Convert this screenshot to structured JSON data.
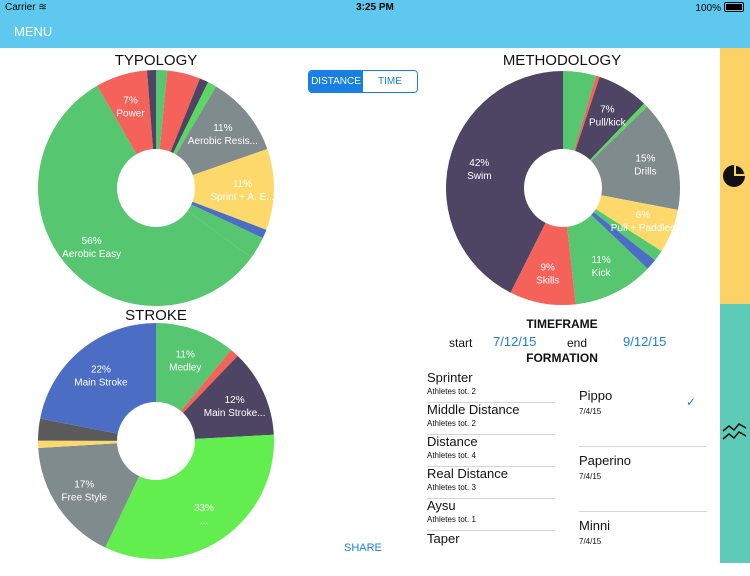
{
  "status": {
    "carrier": "Carrier",
    "time": "3:25 PM",
    "battery": "100%"
  },
  "nav": {
    "menu_label": "MENU"
  },
  "toggle": {
    "distance_label": "DISTANCE",
    "time_label": "TIME"
  },
  "charts": {
    "typology": {
      "title": "TYPOLOGY"
    },
    "methodology": {
      "title": "METHODOLOGY"
    },
    "stroke": {
      "title": "STROKE"
    }
  },
  "chart_data": [
    {
      "type": "pie",
      "title": "TYPOLOGY",
      "slices": [
        {
          "value": 1.5,
          "color": "#56c770",
          "pct": "",
          "label": ""
        },
        {
          "value": 4.5,
          "color": "#f4625a",
          "pct": "",
          "label": ""
        },
        {
          "value": 1.2,
          "color": "#4e4565",
          "pct": "",
          "label": ""
        },
        {
          "value": 1.2,
          "color": "#5ad960",
          "pct": "",
          "label": ""
        },
        {
          "value": 11,
          "color": "#7f8b8c",
          "pct": "11%",
          "label": "Aerobic Resis..."
        },
        {
          "value": 11,
          "color": "#fcd96a",
          "pct": "11%",
          "label": "Sprint + A. E..."
        },
        {
          "value": 1.2,
          "color": "#4b6dc4",
          "pct": "",
          "label": ""
        },
        {
          "value": 3,
          "color": "#56c770",
          "pct": "",
          "label": ""
        },
        {
          "value": 56,
          "color": "#56c770",
          "pct": "56%",
          "label": "Aerobic Easy"
        },
        {
          "value": 7,
          "color": "#f4625a",
          "pct": "7%",
          "label": "Power"
        },
        {
          "value": 1.2,
          "color": "#4e4565",
          "pct": "",
          "label": ""
        }
      ]
    },
    {
      "type": "pie",
      "title": "METHODOLOGY",
      "slices": [
        {
          "value": 4.5,
          "color": "#56c770",
          "pct": "",
          "label": ""
        },
        {
          "value": 0.5,
          "color": "#f4625a",
          "pct": "",
          "label": ""
        },
        {
          "value": 7,
          "color": "#4e4565",
          "pct": "7%",
          "label": "Pull/kick"
        },
        {
          "value": 0.6,
          "color": "#5ad960",
          "pct": "",
          "label": ""
        },
        {
          "value": 15,
          "color": "#7f8b8c",
          "pct": "15%",
          "label": "Drills"
        },
        {
          "value": 6,
          "color": "#fcd96a",
          "pct": "6%",
          "label": "Pull + Paddles"
        },
        {
          "value": 1.5,
          "color": "#56c770",
          "pct": "",
          "label": ""
        },
        {
          "value": 1.5,
          "color": "#4b6dc4",
          "pct": "",
          "label": ""
        },
        {
          "value": 11,
          "color": "#56c770",
          "pct": "11%",
          "label": "Kick"
        },
        {
          "value": 9,
          "color": "#f4625a",
          "pct": "9%",
          "label": "Skills"
        },
        {
          "value": 42,
          "color": "#4e4565",
          "pct": "42%",
          "label": "Swim"
        }
      ]
    },
    {
      "type": "pie",
      "title": "STROKE",
      "slices": [
        {
          "value": 11,
          "color": "#56c770",
          "pct": "11%",
          "label": "Medley"
        },
        {
          "value": 1.2,
          "color": "#f4625a",
          "pct": "",
          "label": ""
        },
        {
          "value": 12,
          "color": "#4e4565",
          "pct": "12%",
          "label": "Main Stroke..."
        },
        {
          "value": 33,
          "color": "#62ee4f",
          "pct": "33%",
          "label": "..."
        },
        {
          "value": 17,
          "color": "#7f8b8c",
          "pct": "17%",
          "label": "Free Style"
        },
        {
          "value": 1,
          "color": "#fcd96a",
          "pct": "",
          "label": ""
        },
        {
          "value": 3,
          "color": "#5a5a5a",
          "pct": "",
          "label": ""
        },
        {
          "value": 22,
          "color": "#4b6dc4",
          "pct": "22%",
          "label": "Main Stroke"
        }
      ]
    }
  ],
  "timeframe": {
    "title": "TIMEFRAME",
    "start_label": "start",
    "start_date": "7/12/15",
    "end_label": "end",
    "end_date": "9/12/15"
  },
  "formation": {
    "title": "FORMATION",
    "items": [
      {
        "name": "Sprinter",
        "sub": "Athletes tot. 2"
      },
      {
        "name": "Middle Distance",
        "sub": "Athletes tot. 2"
      },
      {
        "name": "Distance",
        "sub": "Athletes tot. 4"
      },
      {
        "name": "Real Distance",
        "sub": "Athletes tot. 3"
      },
      {
        "name": "Aysu",
        "sub": "Athletes tot. 1"
      },
      {
        "name": "Taper",
        "sub": ""
      }
    ]
  },
  "athletes": [
    {
      "name": "Pippo",
      "date": "7/4/15",
      "selected": true
    },
    {
      "name": "Paperino",
      "date": "7/4/15"
    },
    {
      "name": "Minni",
      "date": "7/4/15"
    }
  ],
  "share_label": "SHARE",
  "sidebar": {
    "top_icon": "pie-chart-icon",
    "bottom_icon": "line-chart-icon"
  }
}
